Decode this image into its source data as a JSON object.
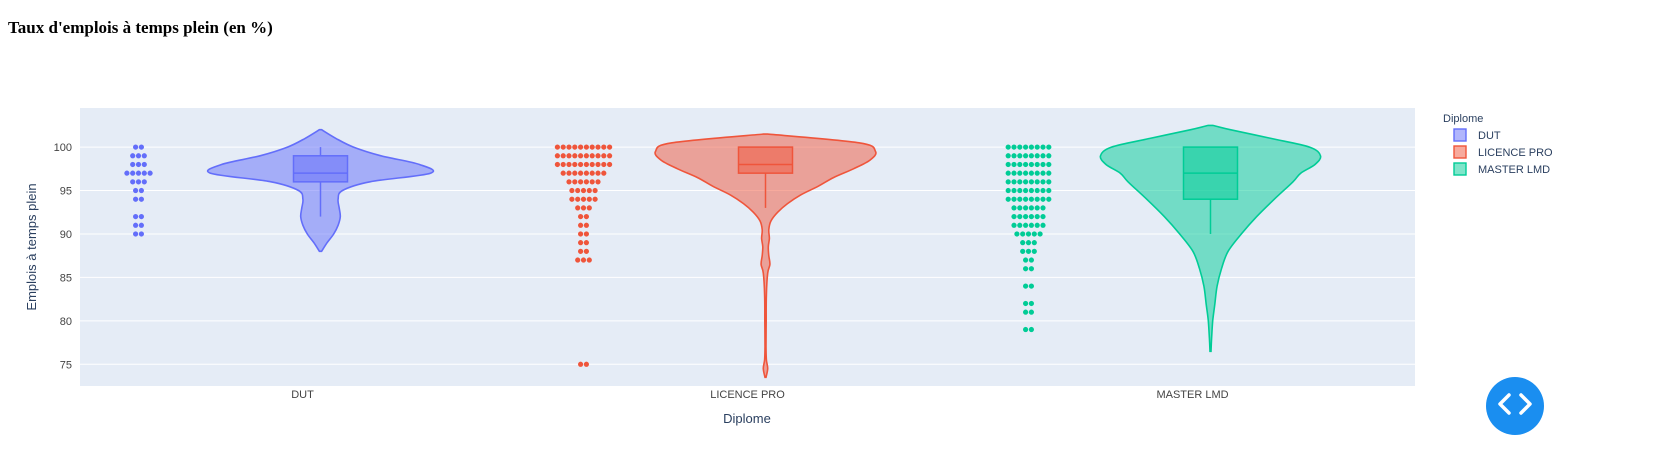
{
  "page": {
    "title": "Taux d'emplois à temps plein (en %)"
  },
  "chart_data": {
    "type": "violin",
    "xlabel": "Diplome",
    "ylabel": "Emplois à temps plein",
    "ylim": [
      72.5,
      104.5
    ],
    "yticks": [
      75,
      80,
      85,
      90,
      95,
      100
    ],
    "categories": [
      "DUT",
      "LICENCE PRO",
      "MASTER LMD"
    ],
    "legend": {
      "title": "Diplome",
      "position": "top-right"
    },
    "grid": true,
    "series": [
      {
        "name": "DUT",
        "color": "#636efa",
        "box": {
          "q1": 96,
          "median": 97,
          "q3": 99,
          "whisker_low": 92,
          "whisker_high": 100
        },
        "violin_range": [
          88,
          102
        ],
        "violin_profile": [
          [
            88,
            0.01
          ],
          [
            89,
            0.06
          ],
          [
            90,
            0.12
          ],
          [
            91,
            0.16
          ],
          [
            92,
            0.18
          ],
          [
            93,
            0.17
          ],
          [
            94,
            0.16
          ],
          [
            95,
            0.2
          ],
          [
            96,
            0.45
          ],
          [
            97,
            1.0
          ],
          [
            98,
            0.9
          ],
          [
            99,
            0.55
          ],
          [
            100,
            0.3
          ],
          [
            101,
            0.14
          ],
          [
            102,
            0.01
          ]
        ],
        "points": [
          [
            100,
            1
          ],
          [
            99,
            2
          ],
          [
            98,
            2
          ],
          [
            97,
            3
          ],
          [
            96,
            2
          ],
          [
            95,
            1
          ],
          [
            94,
            1
          ],
          [
            92,
            1
          ],
          [
            91,
            1
          ],
          [
            90,
            1
          ]
        ]
      },
      {
        "name": "LICENCE PRO",
        "color": "#ef553b",
        "box": {
          "q1": 97,
          "median": 98,
          "q3": 100,
          "whisker_low": 93,
          "whisker_high": 100
        },
        "violin_range": [
          73.5,
          101.5
        ],
        "violin_profile": [
          [
            73.5,
            0.005
          ],
          [
            74.5,
            0.02
          ],
          [
            75.5,
            0.008
          ],
          [
            77,
            0.005
          ],
          [
            80,
            0.006
          ],
          [
            83,
            0.008
          ],
          [
            85.5,
            0.02
          ],
          [
            86.5,
            0.04
          ],
          [
            87.5,
            0.03
          ],
          [
            88.5,
            0.025
          ],
          [
            89.5,
            0.035
          ],
          [
            90.5,
            0.03
          ],
          [
            91.5,
            0.05
          ],
          [
            92.5,
            0.11
          ],
          [
            93.5,
            0.2
          ],
          [
            94.5,
            0.32
          ],
          [
            95.5,
            0.48
          ],
          [
            96.5,
            0.62
          ],
          [
            97.5,
            0.8
          ],
          [
            98.5,
            0.95
          ],
          [
            99.5,
            1.0
          ],
          [
            100.5,
            0.85
          ],
          [
            101.5,
            0.02
          ]
        ],
        "points": [
          [
            100,
            6
          ],
          [
            99,
            6
          ],
          [
            98,
            6
          ],
          [
            97,
            5
          ],
          [
            96,
            4
          ],
          [
            95,
            3
          ],
          [
            94,
            3
          ],
          [
            93,
            2
          ],
          [
            92,
            1
          ],
          [
            91,
            1
          ],
          [
            90,
            1
          ],
          [
            89,
            1
          ],
          [
            88,
            1
          ],
          [
            87,
            2
          ],
          [
            75,
            1
          ]
        ]
      },
      {
        "name": "MASTER LMD",
        "color": "#00cc96",
        "box": {
          "q1": 94,
          "median": 97,
          "q3": 100,
          "whisker_low": 90,
          "whisker_high": 100
        },
        "violin_range": [
          76.5,
          102.5
        ],
        "violin_profile": [
          [
            76.5,
            0.005
          ],
          [
            78,
            0.01
          ],
          [
            80,
            0.02
          ],
          [
            82,
            0.04
          ],
          [
            84,
            0.06
          ],
          [
            86,
            0.1
          ],
          [
            88,
            0.16
          ],
          [
            90,
            0.28
          ],
          [
            92,
            0.42
          ],
          [
            94,
            0.58
          ],
          [
            96,
            0.75
          ],
          [
            97,
            0.82
          ],
          [
            98,
            0.95
          ],
          [
            99,
            1.0
          ],
          [
            100,
            0.9
          ],
          [
            101,
            0.55
          ],
          [
            102,
            0.18
          ],
          [
            102.5,
            0.02
          ]
        ],
        "points": [
          [
            100,
            5
          ],
          [
            99,
            5
          ],
          [
            98,
            5
          ],
          [
            97,
            5
          ],
          [
            96,
            5
          ],
          [
            95,
            5
          ],
          [
            94,
            5
          ],
          [
            93,
            4
          ],
          [
            92,
            4
          ],
          [
            91,
            4
          ],
          [
            90,
            3
          ],
          [
            89,
            2
          ],
          [
            88,
            2
          ],
          [
            87,
            1
          ],
          [
            86,
            1
          ],
          [
            84,
            1
          ],
          [
            82,
            1
          ],
          [
            81,
            1
          ],
          [
            79,
            1
          ]
        ]
      }
    ]
  },
  "icons": {
    "code": "code-brackets-icon"
  }
}
